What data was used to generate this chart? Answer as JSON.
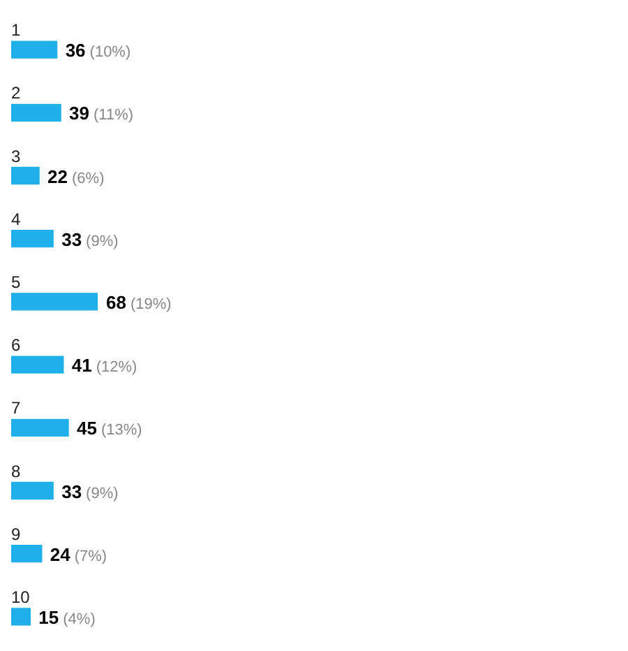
{
  "chart_data": {
    "type": "bar",
    "orientation": "horizontal",
    "categories": [
      "1",
      "2",
      "3",
      "4",
      "5",
      "6",
      "7",
      "8",
      "9",
      "10"
    ],
    "values": [
      36,
      39,
      22,
      33,
      68,
      41,
      45,
      33,
      24,
      15
    ],
    "value_labels": [
      "36 (10%)",
      "39 (11%)",
      "22 (6%)",
      "33 (9%)",
      "68 (19%)",
      "41 (12%)",
      "45 (13%)",
      "33 (9%)",
      "24 (7%)",
      "15 (4%)"
    ],
    "color": "#1fb0ea",
    "legend": false
  }
}
